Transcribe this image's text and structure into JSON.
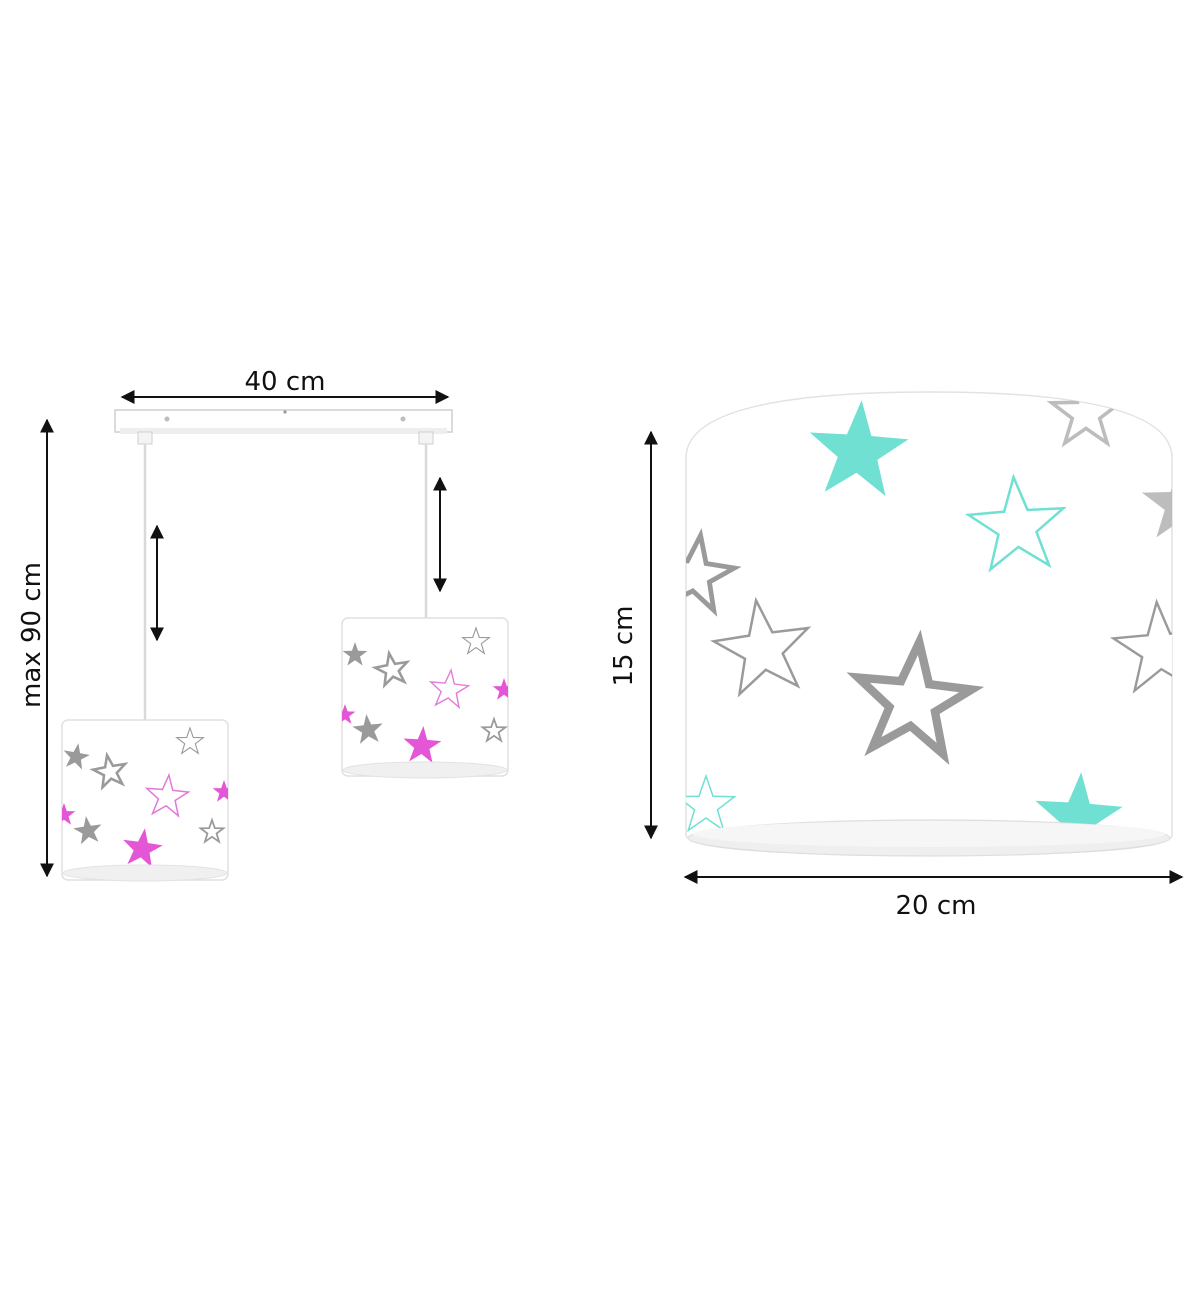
{
  "dimensions": {
    "width_label": "40 cm",
    "height_label": "max 90 cm",
    "shade_height_label": "15 cm",
    "shade_width_label": "20 cm"
  },
  "colors": {
    "background": "#ffffff",
    "arrow": "#111111",
    "shade": "#ffffff",
    "shade_edge": "#e4e4e4",
    "star_grey": "#9a9a9a",
    "star_pink": "#e27bd8",
    "star_pink_bright": "#e357d6",
    "star_mint": "#6fe0d2"
  },
  "icons": [
    "dimension-arrow",
    "star-outline",
    "star-solid",
    "star-chevron"
  ]
}
